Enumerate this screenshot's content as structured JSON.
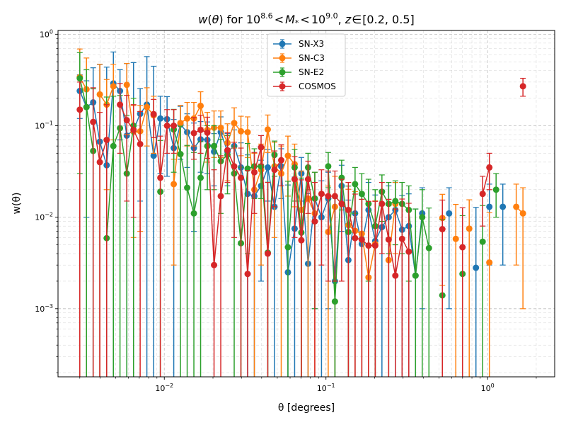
{
  "chart_data": {
    "type": "line",
    "title_parts": {
      "w": "w",
      "theta": "θ",
      "for": "for",
      "mlow": "10",
      "mlow_exp": "8.6",
      "lt1": "<",
      "mstar": "M",
      "mstar_sub": "*",
      "lt2": "<",
      "mhigh": "10",
      "mhigh_exp": "9.0",
      "z": "z",
      "in": "∈",
      "range": "[0.2, 0.5]"
    },
    "xlabel": "θ [degrees]",
    "ylabel": "w(θ)",
    "xscale": "log",
    "yscale": "log",
    "xlim": [
      0.0022,
      2.6
    ],
    "ylim": [
      0.00018,
      1.1
    ],
    "grid": true,
    "legend_position": "top-center",
    "x_ticks": [
      {
        "value": 0.01,
        "base": "10",
        "exp": "−2"
      },
      {
        "value": 0.1,
        "base": "10",
        "exp": "−1"
      },
      {
        "value": 1,
        "base": "10",
        "exp": "0"
      }
    ],
    "y_ticks": [
      {
        "value": 0.001,
        "base": "10",
        "exp": "−3"
      },
      {
        "value": 0.01,
        "base": "10",
        "exp": "−2"
      },
      {
        "value": 0.1,
        "base": "10",
        "exp": "−1"
      },
      {
        "value": 1,
        "base": "10",
        "exp": "0"
      }
    ],
    "x": [
      0.003,
      0.0033,
      0.00363,
      0.00399,
      0.0044,
      0.00484,
      0.00532,
      0.00586,
      0.00645,
      0.00709,
      0.0078,
      0.00859,
      0.00945,
      0.0104,
      0.01144,
      0.01259,
      0.01385,
      0.01524,
      0.01677,
      0.01846,
      0.02031,
      0.02235,
      0.02459,
      0.02706,
      0.02978,
      0.03277,
      0.03606,
      0.03968,
      0.04366,
      0.04804,
      0.05287,
      0.05817,
      0.06401,
      0.07044,
      0.07751,
      0.08529,
      0.09385,
      0.10327,
      0.11364,
      0.12504,
      0.13759,
      0.1514,
      0.1666,
      0.18332,
      0.20173,
      0.22197,
      0.24426,
      0.26877,
      0.29575,
      0.32544,
      0.3581,
      0.39405,
      0.4336,
      0.47712,
      0.52501,
      0.57771,
      0.6357,
      0.69951,
      0.76972,
      0.84698,
      0.932,
      1.02555,
      1.12849,
      1.24176,
      1.3664,
      1.50356,
      1.65448
    ],
    "series": [
      {
        "name": "SN-X3",
        "color": "#1f77b4",
        "values": [
          0.24,
          0.16,
          0.18,
          0.067,
          0.037,
          0.29,
          0.24,
          0.078,
          0.09,
          0.135,
          0.17,
          0.047,
          0.12,
          0.118,
          0.057,
          0.103,
          0.085,
          0.057,
          0.071,
          0.07,
          0.052,
          0.085,
          0.052,
          0.06,
          0.035,
          0.018,
          0.017,
          0.022,
          0.035,
          0.013,
          0.036,
          0.0025,
          0.0075,
          0.03,
          0.0031,
          0.016,
          0.01,
          0.016,
          0.002,
          0.022,
          0.0034,
          0.011,
          0.0051,
          0.012,
          0.0055,
          0.0078,
          0.01,
          0.012,
          0.0073,
          0.008,
          0.0023,
          0.011,
          null,
          null,
          null,
          0.011,
          null,
          null,
          null,
          0.0028,
          null,
          0.013,
          null,
          0.013,
          null,
          null,
          null
        ],
        "errors": [
          0.12,
          0.15,
          0.25,
          0.4,
          0.4,
          0.35,
          0.17,
          0.4,
          0.4,
          0.12,
          0.4,
          0.4,
          0.09,
          0.09,
          0.06,
          0.06,
          0.05,
          0.05,
          0.04,
          0.04,
          0.03,
          0.04,
          0.03,
          0.03,
          0.03,
          0.03,
          0.02,
          0.02,
          0.02,
          0.02,
          0.02,
          0.02,
          0.02,
          0.015,
          0.015,
          0.015,
          0.015,
          0.015,
          0.015,
          0.015,
          0.012,
          0.012,
          0.012,
          0.012,
          0.012,
          0.012,
          0.012,
          0.012,
          0.01,
          0.01,
          0.01,
          0.01,
          null,
          null,
          null,
          0.01,
          null,
          null,
          null,
          0.01,
          null,
          0.01,
          null,
          0.01,
          null,
          null,
          null
        ]
      },
      {
        "name": "SN-C3",
        "color": "#ff7f0e",
        "values": [
          0.34,
          0.25,
          null,
          0.22,
          0.17,
          0.27,
          null,
          0.28,
          0.086,
          0.087,
          0.16,
          0.13,
          null,
          null,
          0.023,
          0.107,
          0.12,
          0.12,
          0.165,
          0.09,
          0.095,
          0.095,
          0.065,
          0.107,
          0.087,
          0.085,
          0.02,
          0.033,
          0.091,
          0.036,
          0.03,
          0.047,
          0.038,
          0.012,
          0.016,
          0.011,
          null,
          0.0069,
          0.013,
          null,
          0.0082,
          0.0071,
          0.0066,
          0.0022,
          0.0051,
          null,
          0.0034,
          0.014,
          null,
          null,
          null,
          null,
          null,
          null,
          0.0098,
          null,
          0.0058,
          null,
          0.0075,
          null,
          null,
          0.0032,
          null,
          null,
          null,
          0.013,
          0.011
        ],
        "errors": [
          0.35,
          0.3,
          null,
          0.25,
          0.15,
          0.2,
          null,
          0.2,
          0.08,
          0.08,
          0.1,
          0.08,
          null,
          null,
          0.02,
          0.06,
          0.06,
          0.06,
          0.07,
          0.05,
          0.05,
          0.05,
          0.04,
          0.05,
          0.04,
          0.04,
          0.03,
          0.03,
          0.04,
          0.03,
          0.03,
          0.03,
          0.025,
          0.02,
          0.02,
          0.02,
          null,
          0.015,
          0.015,
          null,
          0.012,
          0.012,
          0.012,
          0.012,
          0.01,
          null,
          0.01,
          0.01,
          null,
          null,
          null,
          null,
          null,
          null,
          0.008,
          null,
          0.008,
          null,
          0.008,
          null,
          null,
          0.008,
          null,
          null,
          null,
          0.01,
          0.01
        ]
      },
      {
        "name": "SN-E2",
        "color": "#2ca02c",
        "values": [
          0.33,
          0.16,
          0.053,
          null,
          0.0059,
          0.06,
          0.094,
          0.03,
          0.1,
          null,
          null,
          null,
          0.019,
          null,
          0.091,
          0.049,
          0.021,
          0.011,
          0.027,
          0.06,
          0.06,
          0.041,
          0.048,
          0.03,
          0.0052,
          0.034,
          0.036,
          0.036,
          0.0041,
          0.048,
          null,
          0.0047,
          0.035,
          0.0068,
          0.035,
          0.016,
          null,
          0.036,
          0.0012,
          0.027,
          0.0069,
          0.023,
          0.018,
          0.014,
          0.008,
          0.019,
          0.014,
          0.015,
          0.014,
          0.012,
          0.0023,
          0.01,
          0.0046,
          null,
          0.0014,
          null,
          null,
          0.0024,
          null,
          null,
          0.0054,
          null,
          0.02,
          null,
          null,
          null,
          null
        ],
        "errors": [
          0.3,
          0.25,
          0.2,
          null,
          0.2,
          0.15,
          0.12,
          0.1,
          0.1,
          null,
          null,
          null,
          0.05,
          null,
          0.06,
          0.05,
          0.04,
          0.04,
          0.04,
          0.04,
          0.04,
          0.03,
          0.03,
          0.03,
          0.03,
          0.03,
          0.02,
          0.02,
          0.02,
          0.02,
          null,
          0.02,
          0.02,
          0.02,
          0.015,
          0.015,
          null,
          0.015,
          0.015,
          0.015,
          0.015,
          0.012,
          0.012,
          0.012,
          0.012,
          0.01,
          0.01,
          0.01,
          0.01,
          0.01,
          0.01,
          0.01,
          0.008,
          null,
          0.008,
          null,
          null,
          0.008,
          null,
          null,
          0.008,
          null,
          0.01,
          null,
          null,
          null,
          null
        ]
      },
      {
        "name": "COSMOS",
        "color": "#d62728",
        "values": [
          0.15,
          null,
          0.11,
          0.04,
          0.07,
          null,
          0.17,
          0.115,
          0.09,
          0.063,
          null,
          0.134,
          0.027,
          0.1,
          0.1,
          null,
          null,
          0.083,
          0.09,
          0.084,
          0.003,
          0.017,
          0.054,
          0.036,
          0.027,
          0.0024,
          0.031,
          0.058,
          0.004,
          0.033,
          0.042,
          null,
          0.026,
          0.0056,
          0.026,
          0.009,
          0.018,
          0.017,
          0.017,
          0.014,
          0.012,
          0.0059,
          0.0057,
          0.0049,
          0.0049,
          0.014,
          0.0057,
          0.0023,
          0.0058,
          0.0042,
          null,
          null,
          null,
          null,
          0.0074,
          null,
          null,
          0.0047,
          null,
          null,
          0.018,
          0.035,
          null,
          null,
          null,
          null,
          0.27
        ],
        "errors": [
          0.15,
          null,
          0.15,
          0.1,
          0.1,
          null,
          0.12,
          0.1,
          0.08,
          0.08,
          null,
          0.06,
          0.05,
          0.05,
          0.05,
          null,
          null,
          0.04,
          0.04,
          0.04,
          0.03,
          0.03,
          0.03,
          0.03,
          0.03,
          0.03,
          0.02,
          0.02,
          0.02,
          0.02,
          0.02,
          null,
          0.02,
          0.02,
          0.015,
          0.015,
          0.015,
          0.015,
          0.015,
          0.012,
          0.012,
          0.012,
          0.01,
          0.01,
          0.01,
          0.01,
          0.01,
          0.01,
          0.01,
          0.01,
          null,
          null,
          null,
          null,
          0.008,
          null,
          null,
          0.008,
          null,
          null,
          0.01,
          0.015,
          null,
          null,
          null,
          null,
          0.06
        ]
      }
    ]
  }
}
